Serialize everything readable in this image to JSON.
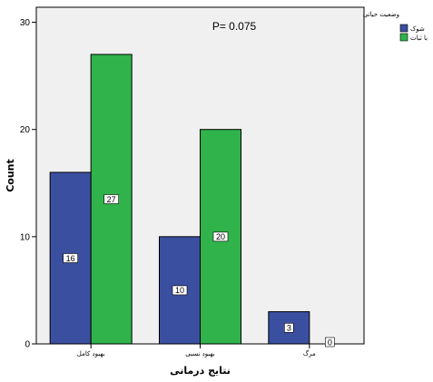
{
  "chart_data": {
    "type": "bar",
    "annotation": "P= 0.075",
    "xlabel": "نتایج درمانی",
    "ylabel": "Count",
    "categories": [
      "بهبود کامل",
      "بهبود نسبی",
      "مرگ"
    ],
    "series": [
      {
        "name": "شوک",
        "values": [
          16,
          10,
          3
        ],
        "color": "#3b4fa0"
      },
      {
        "name": "با ثبات",
        "values": [
          27,
          20,
          0
        ],
        "color": "#2fb34a"
      }
    ],
    "ylim": [
      0,
      30
    ],
    "yticks": [
      0,
      10,
      20,
      30
    ],
    "legend_title": "وضعیت حیاتی",
    "legend_position": "top-right",
    "grid": false,
    "plot_background": "#f0f0f0"
  }
}
